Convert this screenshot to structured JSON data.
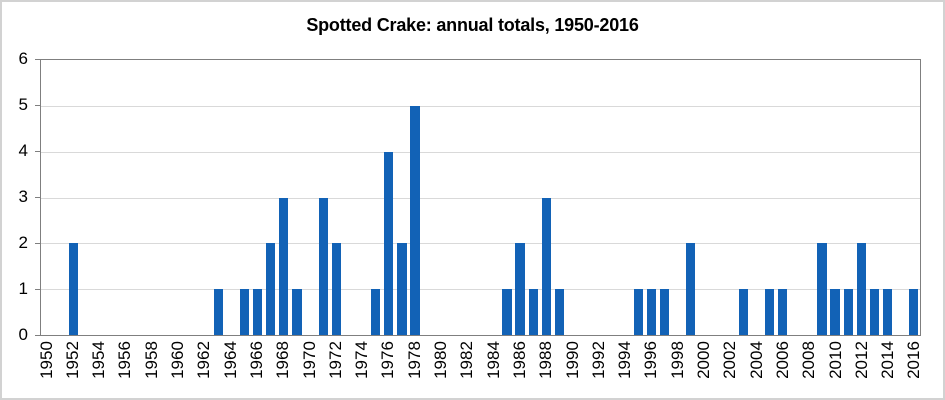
{
  "chart_data": {
    "type": "bar",
    "title": "Spotted Crake: annual totals, 1950-2016",
    "xlabel": "",
    "ylabel": "",
    "x": [
      1950,
      1951,
      1952,
      1953,
      1954,
      1955,
      1956,
      1957,
      1958,
      1959,
      1960,
      1961,
      1962,
      1963,
      1964,
      1965,
      1966,
      1967,
      1968,
      1969,
      1970,
      1971,
      1972,
      1973,
      1974,
      1975,
      1976,
      1977,
      1978,
      1979,
      1980,
      1981,
      1982,
      1983,
      1984,
      1985,
      1986,
      1987,
      1988,
      1989,
      1990,
      1991,
      1992,
      1993,
      1994,
      1995,
      1996,
      1997,
      1998,
      1999,
      2000,
      2001,
      2002,
      2003,
      2004,
      2005,
      2006,
      2007,
      2008,
      2009,
      2010,
      2011,
      2012,
      2013,
      2014,
      2015,
      2016
    ],
    "values": [
      0,
      0,
      2,
      0,
      0,
      0,
      0,
      0,
      0,
      0,
      0,
      0,
      0,
      1,
      0,
      1,
      1,
      2,
      3,
      1,
      0,
      3,
      2,
      0,
      0,
      1,
      4,
      2,
      5,
      0,
      0,
      0,
      0,
      0,
      0,
      1,
      2,
      1,
      3,
      1,
      0,
      0,
      0,
      0,
      0,
      1,
      1,
      1,
      0,
      2,
      0,
      0,
      0,
      1,
      0,
      1,
      1,
      0,
      0,
      2,
      1,
      1,
      2,
      1,
      1,
      0,
      1
    ],
    "ylim": [
      0,
      6
    ],
    "yticks": [
      0,
      1,
      2,
      3,
      4,
      5,
      6
    ],
    "xtick_labels": [
      "1950",
      "1952",
      "1954",
      "1956",
      "1958",
      "1960",
      "1962",
      "1964",
      "1966",
      "1968",
      "1970",
      "1972",
      "1974",
      "1976",
      "1978",
      "1980",
      "1982",
      "1984",
      "1986",
      "1988",
      "1990",
      "1992",
      "1994",
      "1996",
      "1998",
      "2000",
      "2002",
      "2004",
      "2006",
      "2008",
      "2010",
      "2012",
      "2014",
      "2016"
    ],
    "grid": "horizontal",
    "legend": "none",
    "bar_color": "#1262b6",
    "gridline_color": "#d9d9d9",
    "axis_color": "#7f7f7f",
    "frame_border_color": "#d2d2d2"
  }
}
